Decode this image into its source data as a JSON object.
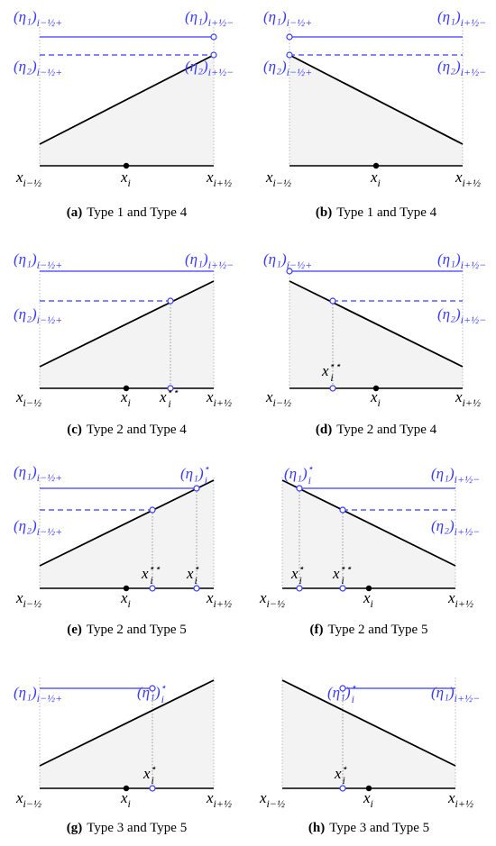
{
  "panels": [
    {
      "tag": "(a)",
      "caption": "Type 1 and Type 4",
      "labels": [
        {
          "base": "(η₁)",
          "sub": "i−½+"
        },
        {
          "base": "(η₁)",
          "sub": "i+½−"
        },
        {
          "base": "(η₂)",
          "sub": "i−½+"
        },
        {
          "base": "(η₂)",
          "sub": "i+½−"
        },
        {
          "base": "x",
          "sub": "i−½"
        },
        {
          "base": "x",
          "sub": "i"
        },
        {
          "base": "x",
          "sub": "i+½"
        }
      ]
    },
    {
      "tag": "(b)",
      "caption": "Type 1 and Type 4",
      "labels": [
        {
          "base": "(η₁)",
          "sub": "i−½+"
        },
        {
          "base": "(η₁)",
          "sub": "i+½−"
        },
        {
          "base": "(η₂)",
          "sub": "i−½+"
        },
        {
          "base": "(η₂)",
          "sub": "i+½−"
        },
        {
          "base": "x",
          "sub": "i−½"
        },
        {
          "base": "x",
          "sub": "i"
        },
        {
          "base": "x",
          "sub": "i+½"
        }
      ]
    },
    {
      "tag": "(c)",
      "caption": "Type 2 and Type 4",
      "labels": [
        {
          "base": "(η₁)",
          "sub": "i−½+"
        },
        {
          "base": "(η₁)",
          "sub": "i+½−"
        },
        {
          "base": "(η₂)",
          "sub": "i−½+"
        },
        {
          "base": "x",
          "sub": "i−½"
        },
        {
          "base": "x",
          "sub": "i"
        },
        {
          "base": "x",
          "sub": "i",
          "sup": "⋆⋆"
        },
        {
          "base": "x",
          "sub": "i+½"
        }
      ]
    },
    {
      "tag": "(d)",
      "caption": "Type 2 and Type 4",
      "labels": [
        {
          "base": "(η₁)",
          "sub": "i−½+"
        },
        {
          "base": "(η₁)",
          "sub": "i+½−"
        },
        {
          "base": "(η₂)",
          "sub": "i+½−"
        },
        {
          "base": "x",
          "sub": "i",
          "sup": "⋆⋆"
        },
        {
          "base": "x",
          "sub": "i−½"
        },
        {
          "base": "x",
          "sub": "i"
        },
        {
          "base": "x",
          "sub": "i+½"
        }
      ]
    },
    {
      "tag": "(e)",
      "caption": "Type 2 and Type 5",
      "labels": [
        {
          "base": "(η₁)",
          "sub": "i−½+"
        },
        {
          "base": "(η₁)",
          "sub": "i",
          "sup": "⋆"
        },
        {
          "base": "(η₂)",
          "sub": "i−½+"
        },
        {
          "base": "x",
          "sub": "i",
          "sup": "⋆⋆"
        },
        {
          "base": "x",
          "sub": "i",
          "sup": "⋆"
        },
        {
          "base": "x",
          "sub": "i−½"
        },
        {
          "base": "x",
          "sub": "i"
        },
        {
          "base": "x",
          "sub": "i+½"
        }
      ]
    },
    {
      "tag": "(f)",
      "caption": "Type 2 and Type 5",
      "labels": [
        {
          "base": "(η₁)",
          "sub": "i",
          "sup": "⋆"
        },
        {
          "base": "(η₁)",
          "sub": "i+½−"
        },
        {
          "base": "(η₂)",
          "sub": "i+½−"
        },
        {
          "base": "x",
          "sub": "i",
          "sup": "⋆"
        },
        {
          "base": "x",
          "sub": "i",
          "sup": "⋆⋆"
        },
        {
          "base": "x",
          "sub": "i−½"
        },
        {
          "base": "x",
          "sub": "i"
        },
        {
          "base": "x",
          "sub": "i+½"
        }
      ]
    },
    {
      "tag": "(g)",
      "caption": "Type 3 and Type 5",
      "labels": [
        {
          "base": "(η₁)",
          "sub": "i−½+"
        },
        {
          "base": "(η₁)",
          "sub": "i",
          "sup": "⋆"
        },
        {
          "base": "x",
          "sub": "i",
          "sup": "⋆"
        },
        {
          "base": "x",
          "sub": "i−½"
        },
        {
          "base": "x",
          "sub": "i"
        },
        {
          "base": "x",
          "sub": "i+½"
        }
      ]
    },
    {
      "tag": "(h)",
      "caption": "Type 3 and Type 5",
      "labels": [
        {
          "base": "(η₁)",
          "sub": "i",
          "sup": "⋆"
        },
        {
          "base": "(η₁)",
          "sub": "i+½−"
        },
        {
          "base": "x",
          "sub": "i",
          "sup": "⋆"
        },
        {
          "base": "x",
          "sub": "i−½"
        },
        {
          "base": "x",
          "sub": "i"
        },
        {
          "base": "x",
          "sub": "i+½"
        }
      ]
    }
  ]
}
